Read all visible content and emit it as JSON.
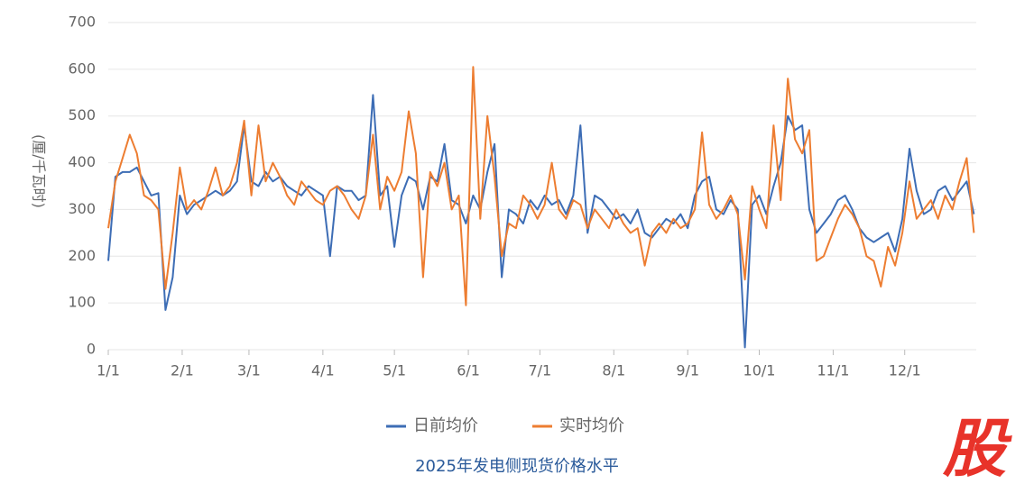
{
  "chart_data": {
    "type": "line",
    "title": "2025年发电侧现货价格水平",
    "y_label": "(厘/千瓦时)",
    "watermark": "股",
    "x": [
      0,
      3,
      6,
      9,
      12,
      15,
      18,
      21,
      24,
      27,
      30,
      33,
      36,
      39,
      42,
      45,
      48,
      51,
      54,
      57,
      60,
      63,
      66,
      69,
      72,
      75,
      78,
      81,
      84,
      87,
      90,
      93,
      96,
      99,
      102,
      105,
      108,
      111,
      114,
      117,
      120,
      123,
      126,
      129,
      132,
      135,
      138,
      141,
      144,
      147,
      150,
      153,
      156,
      159,
      162,
      165,
      168,
      171,
      174,
      177,
      180,
      183,
      186,
      189,
      192,
      195,
      198,
      201,
      204,
      207,
      210,
      213,
      216,
      219,
      222,
      225,
      228,
      231,
      234,
      237,
      240,
      243,
      246,
      249,
      252,
      255,
      258,
      261,
      264,
      267,
      270,
      273,
      276,
      279,
      282,
      285,
      288,
      291,
      294,
      297,
      300,
      303,
      306,
      309,
      312,
      315,
      318,
      321,
      324,
      327,
      330,
      333,
      336,
      339,
      342,
      345,
      348,
      351,
      354,
      357,
      360,
      363
    ],
    "xlim": [
      0,
      364
    ],
    "xticks": [
      {
        "value": 0,
        "label": "1/1"
      },
      {
        "value": 31,
        "label": "2/1"
      },
      {
        "value": 59,
        "label": "3/1"
      },
      {
        "value": 90,
        "label": "4/1"
      },
      {
        "value": 120,
        "label": "5/1"
      },
      {
        "value": 151,
        "label": "6/1"
      },
      {
        "value": 181,
        "label": "7/1"
      },
      {
        "value": 212,
        "label": "8/1"
      },
      {
        "value": 243,
        "label": "9/1"
      },
      {
        "value": 273,
        "label": "10/1"
      },
      {
        "value": 304,
        "label": "11/1"
      },
      {
        "value": 334,
        "label": "12/1"
      }
    ],
    "ylim": [
      0,
      700
    ],
    "yticks": [
      0,
      100,
      200,
      300,
      400,
      500,
      600,
      700
    ],
    "grid": true,
    "legend": "bottom",
    "series": [
      {
        "name": "日前均价",
        "color": "#3d6db5",
        "values": [
          190,
          370,
          380,
          380,
          390,
          360,
          330,
          335,
          85,
          155,
          330,
          290,
          310,
          320,
          330,
          340,
          330,
          340,
          360,
          480,
          360,
          350,
          380,
          360,
          370,
          350,
          340,
          330,
          350,
          340,
          330,
          200,
          350,
          340,
          340,
          320,
          330,
          545,
          330,
          350,
          220,
          330,
          370,
          360,
          300,
          370,
          360,
          440,
          320,
          310,
          270,
          330,
          300,
          380,
          440,
          155,
          300,
          290,
          270,
          320,
          300,
          330,
          310,
          320,
          290,
          330,
          480,
          250,
          330,
          320,
          300,
          280,
          290,
          270,
          300,
          250,
          240,
          260,
          280,
          270,
          290,
          260,
          330,
          360,
          370,
          300,
          290,
          320,
          300,
          5,
          310,
          330,
          290,
          350,
          400,
          500,
          470,
          480,
          300,
          250,
          270,
          290,
          320,
          330,
          300,
          260,
          240,
          230,
          240,
          250,
          210,
          280,
          430,
          340,
          290,
          300,
          340,
          350,
          320,
          340,
          360,
          290
        ]
      },
      {
        "name": "实时均价",
        "color": "#ed7d31",
        "values": [
          260,
          360,
          410,
          460,
          420,
          330,
          320,
          300,
          130,
          250,
          390,
          300,
          320,
          300,
          340,
          390,
          330,
          350,
          400,
          490,
          330,
          480,
          360,
          400,
          370,
          330,
          310,
          360,
          340,
          320,
          310,
          340,
          350,
          330,
          300,
          280,
          330,
          460,
          300,
          370,
          340,
          380,
          510,
          420,
          155,
          380,
          350,
          400,
          300,
          330,
          95,
          605,
          280,
          500,
          370,
          200,
          270,
          260,
          330,
          310,
          280,
          310,
          400,
          300,
          280,
          320,
          310,
          260,
          300,
          280,
          260,
          300,
          270,
          250,
          260,
          180,
          250,
          270,
          250,
          280,
          260,
          270,
          300,
          465,
          310,
          280,
          300,
          330,
          290,
          150,
          350,
          300,
          260,
          480,
          320,
          580,
          450,
          420,
          470,
          190,
          200,
          240,
          280,
          310,
          290,
          260,
          200,
          190,
          135,
          220,
          180,
          250,
          360,
          280,
          300,
          320,
          280,
          330,
          300,
          360,
          410,
          250
        ]
      }
    ]
  }
}
